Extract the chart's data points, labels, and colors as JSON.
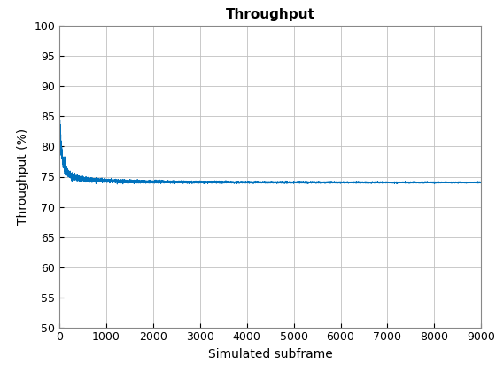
{
  "title": "Throughput",
  "xlabel": "Simulated subframe",
  "ylabel": "Throughput (%)",
  "xlim": [
    0,
    9000
  ],
  "ylim": [
    50,
    100
  ],
  "xticks": [
    0,
    1000,
    2000,
    3000,
    4000,
    5000,
    6000,
    7000,
    8000,
    9000
  ],
  "yticks": [
    50,
    55,
    60,
    65,
    70,
    75,
    80,
    85,
    90,
    95,
    100
  ],
  "line_color": "#0072BD",
  "line_width": 0.7,
  "background_color": "#FFFFFF",
  "grid_color": "#C0C0C0",
  "n_points": 9000,
  "steady_state": 74.0,
  "title_fontsize": 11,
  "label_fontsize": 10,
  "tick_fontsize": 9
}
